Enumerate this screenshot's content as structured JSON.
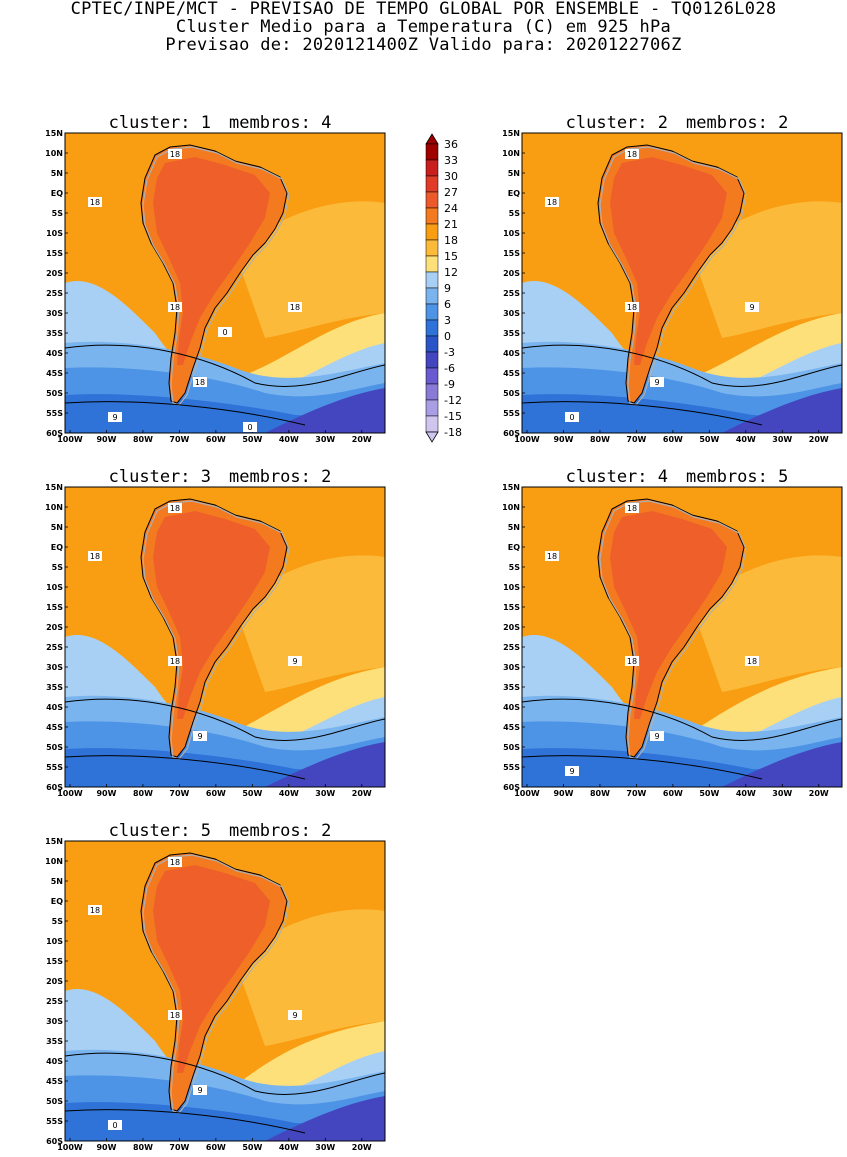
{
  "header": {
    "line1": "CPTEC/INPE/MCT - PREVISAO DE TEMPO GLOBAL POR ENSEMBLE - TQ0126L028",
    "line2": "Cluster Medio para a Temperatura (C) em 925 hPa",
    "line3": "Previsao de: 2020121400Z   Valido para: 2020122706Z"
  },
  "axes": {
    "lat_labels": [
      "15N",
      "10N",
      "5N",
      "EQ",
      "5S",
      "10S",
      "15S",
      "20S",
      "25S",
      "30S",
      "35S",
      "40S",
      "45S",
      "50S",
      "55S",
      "60S"
    ],
    "lon_labels": [
      "100W",
      "90W",
      "80W",
      "70W",
      "60W",
      "50W",
      "40W",
      "30W",
      "20W"
    ]
  },
  "panels": [
    {
      "cluster_label": "cluster: 1",
      "members_label": "membros: 4",
      "contours": [
        "18",
        "18",
        "18",
        "18",
        "18",
        "9",
        "0",
        "0"
      ]
    },
    {
      "cluster_label": "cluster: 2",
      "members_label": "membros: 2",
      "contours": [
        "18",
        "18",
        "18",
        "9",
        "9",
        "0"
      ]
    },
    {
      "cluster_label": "cluster: 3",
      "members_label": "membros: 2",
      "contours": [
        "18",
        "18",
        "18",
        "9",
        "9"
      ]
    },
    {
      "cluster_label": "cluster: 4",
      "members_label": "membros: 5",
      "contours": [
        "18",
        "18",
        "18",
        "18",
        "9",
        "9"
      ]
    },
    {
      "cluster_label": "cluster: 5",
      "members_label": "membros: 2",
      "contours": [
        "18",
        "18",
        "18",
        "9",
        "9",
        "0"
      ]
    }
  ],
  "colorbar": {
    "labels": [
      "36",
      "33",
      "30",
      "27",
      "24",
      "21",
      "18",
      "15",
      "12",
      "9",
      "6",
      "3",
      "0",
      "-3",
      "-6",
      "-9",
      "-12",
      "-15",
      "-18"
    ],
    "colors": [
      "#9e0000",
      "#c81e1e",
      "#e03c28",
      "#ec5a2c",
      "#f47a20",
      "#f99e12",
      "#fcba3a",
      "#fde07a",
      "#a8d0f4",
      "#7ab4ee",
      "#4e94e6",
      "#2f72d8",
      "#2a55c8",
      "#4446c0",
      "#6a5ad0",
      "#8a7ad8",
      "#aa9ee4",
      "#cfc6f0"
    ]
  }
}
